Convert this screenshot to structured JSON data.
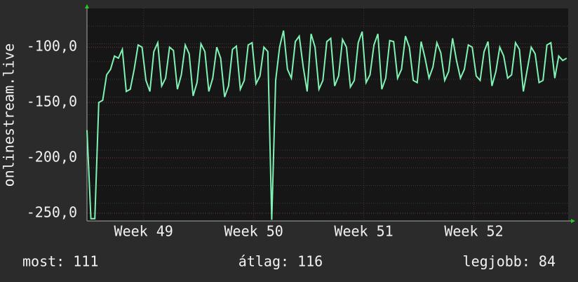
{
  "chart_data": {
    "type": "line",
    "y_label": "onlinestream.live",
    "xlim": [
      0,
      30.6
    ],
    "xticks": [
      {
        "value": 3.6,
        "label": "Week 49"
      },
      {
        "value": 10.6,
        "label": "Week 50"
      },
      {
        "value": 17.6,
        "label": "Week 51"
      },
      {
        "value": 24.6,
        "label": "Week 52"
      }
    ],
    "ylim": [
      -257,
      -65
    ],
    "yticks": [
      {
        "value": -100,
        "label": "-100,0"
      },
      {
        "value": -150,
        "label": "-150,0"
      },
      {
        "value": -200,
        "label": "-200,0"
      },
      {
        "value": -250,
        "label": "-250,0"
      }
    ],
    "grid": true,
    "x": [
      0,
      0.25,
      0.5,
      0.75,
      1,
      1.25,
      1.5,
      1.75,
      2,
      2.25,
      2.5,
      2.75,
      3,
      3.25,
      3.5,
      3.75,
      4,
      4.25,
      4.5,
      4.75,
      5,
      5.25,
      5.5,
      5.75,
      6,
      6.25,
      6.5,
      6.75,
      7,
      7.25,
      7.5,
      7.75,
      8,
      8.25,
      8.5,
      8.75,
      9,
      9.25,
      9.5,
      9.75,
      10,
      10.25,
      10.5,
      10.75,
      11,
      11.25,
      11.5,
      11.75,
      12,
      12.25,
      12.5,
      12.75,
      13,
      13.25,
      13.5,
      13.75,
      14,
      14.25,
      14.5,
      14.75,
      15,
      15.25,
      15.5,
      15.75,
      16,
      16.25,
      16.5,
      16.75,
      17,
      17.25,
      17.5,
      17.75,
      18,
      18.25,
      18.5,
      18.75,
      19,
      19.25,
      19.5,
      19.75,
      20,
      20.25,
      20.5,
      20.75,
      21,
      21.25,
      21.5,
      21.75,
      22,
      22.25,
      22.5,
      22.75,
      23,
      23.25,
      23.5,
      23.75,
      24,
      24.25,
      24.5,
      24.75,
      25,
      25.25,
      25.5,
      25.75,
      26,
      26.25,
      26.5,
      26.75,
      27,
      27.25,
      27.5,
      27.75,
      28,
      28.25,
      28.5,
      28.75,
      29,
      29.25,
      29.5,
      29.75,
      30,
      30.25,
      30.5
    ],
    "series": [
      {
        "color": "#7ff2b4",
        "values": [
          -175,
          -255,
          -255,
          -150,
          -148,
          -125,
          -120,
          -108,
          -110,
          -102,
          -140,
          -138,
          -120,
          -98,
          -100,
          -130,
          -140,
          -104,
          -96,
          -135,
          -128,
          -100,
          -103,
          -138,
          -125,
          -98,
          -106,
          -144,
          -132,
          -97,
          -104,
          -140,
          -128,
          -100,
          -110,
          -145,
          -135,
          -102,
          -99,
          -138,
          -130,
          -98,
          -96,
          -133,
          -126,
          -100,
          -104,
          -256,
          -130,
          -100,
          -85,
          -120,
          -128,
          -95,
          -90,
          -118,
          -140,
          -88,
          -100,
          -138,
          -130,
          -95,
          -92,
          -135,
          -126,
          -93,
          -100,
          -136,
          -130,
          -96,
          -86,
          -132,
          -125,
          -98,
          -88,
          -138,
          -128,
          -94,
          -95,
          -128,
          -120,
          -90,
          -100,
          -130,
          -132,
          -95,
          -110,
          -128,
          -118,
          -96,
          -105,
          -130,
          -122,
          -92,
          -112,
          -128,
          -120,
          -98,
          -100,
          -126,
          -130,
          -104,
          -95,
          -135,
          -122,
          -100,
          -108,
          -128,
          -125,
          -96,
          -102,
          -140,
          -120,
          -100,
          -106,
          -132,
          -130,
          -98,
          -96,
          -128,
          -108,
          -112,
          -110
        ]
      }
    ],
    "footer": {
      "current": "most: 111",
      "average": "átlag: 116",
      "best": "legjobb: 84"
    }
  }
}
